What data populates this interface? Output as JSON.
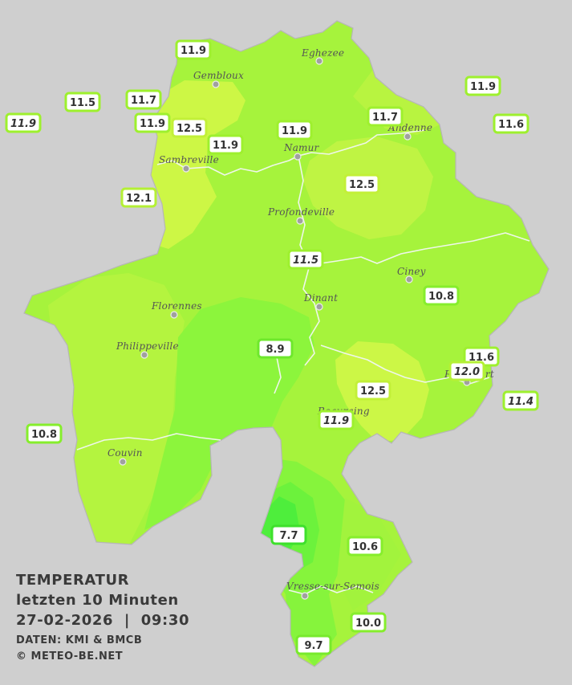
{
  "legend": {
    "title": "TEMPERATUR",
    "period": "letzten 10 Minuten",
    "datetime": "27-02-2026  |  09:30",
    "source": "DATEN: KMI & BMCB",
    "copyright": "© METEO-BE.NET"
  },
  "cities": [
    {
      "name": "Eghezee"
    },
    {
      "name": "Gembloux"
    },
    {
      "name": "Andenne"
    },
    {
      "name": "Namur"
    },
    {
      "name": "Sambreville"
    },
    {
      "name": "Profondeville"
    },
    {
      "name": "Ciney"
    },
    {
      "name": "Dinant"
    },
    {
      "name": "Florennes"
    },
    {
      "name": "Philippeville"
    },
    {
      "name": "Rochefort"
    },
    {
      "name": "Beauraing"
    },
    {
      "name": "Couvin"
    },
    {
      "name": "Vresse-sur-Semois"
    }
  ],
  "stations": [
    {
      "value": "11.9",
      "italic": false
    },
    {
      "value": "11.5",
      "italic": false
    },
    {
      "value": "11.7",
      "italic": false
    },
    {
      "value": "11.9",
      "italic": true
    },
    {
      "value": "11.9",
      "italic": false
    },
    {
      "value": "12.5",
      "italic": false
    },
    {
      "value": "11.9",
      "italic": false
    },
    {
      "value": "11.9",
      "italic": false
    },
    {
      "value": "11.7",
      "italic": false
    },
    {
      "value": "11.9",
      "italic": false
    },
    {
      "value": "11.6",
      "italic": false
    },
    {
      "value": "12.5",
      "italic": false
    },
    {
      "value": "12.1",
      "italic": false
    },
    {
      "value": "11.5",
      "italic": true
    },
    {
      "value": "10.8",
      "italic": false
    },
    {
      "value": "8.9",
      "italic": false
    },
    {
      "value": "11.6",
      "italic": false
    },
    {
      "value": "12.0",
      "italic": true
    },
    {
      "value": "12.5",
      "italic": false
    },
    {
      "value": "11.4",
      "italic": true
    },
    {
      "value": "11.9",
      "italic": true
    },
    {
      "value": "10.8",
      "italic": false
    },
    {
      "value": "7.7",
      "italic": false
    },
    {
      "value": "10.6",
      "italic": false
    },
    {
      "value": "10.0",
      "italic": false
    },
    {
      "value": "9.7",
      "italic": false
    }
  ],
  "colors": {
    "background": "#cfcfcf",
    "province_base": "#a6f33c",
    "zone_warm": "#d2f845",
    "zone_mild": "#8cf53c",
    "zone_cool": "#6cf23c",
    "zone_cold": "#48ee3c",
    "station_border": "#90ee2c"
  }
}
